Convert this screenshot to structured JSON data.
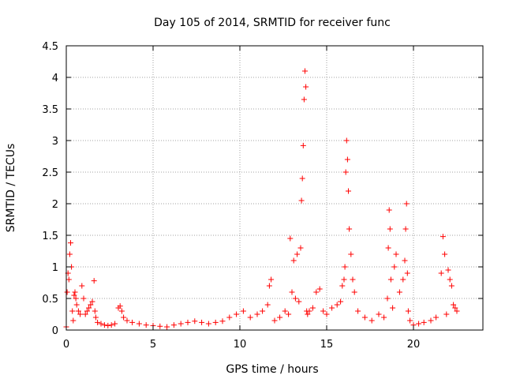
{
  "chart_data": {
    "type": "scatter",
    "title": "Day 105 of 2014, SRMTID for receiver func",
    "xlabel": "GPS time / hours",
    "ylabel": "SRMTID / TECUs",
    "xlim": [
      0,
      24
    ],
    "ylim": [
      0,
      4.5
    ],
    "x_ticks": [
      0,
      5,
      10,
      15,
      20
    ],
    "y_ticks": [
      0,
      0.5,
      1,
      1.5,
      2,
      2.5,
      3,
      3.5,
      4,
      4.5
    ],
    "x_tick_labels": [
      "0",
      "5",
      "10",
      "15",
      "20"
    ],
    "y_tick_labels": [
      "0",
      "0.5",
      "1",
      "1.5",
      "2",
      "2.5",
      "3",
      "3.5",
      "4",
      "4.5"
    ],
    "grid": true,
    "marker": "+",
    "series": [
      {
        "name": "SRMTID",
        "color": "#ff0000",
        "x": [
          0.0,
          0.05,
          0.1,
          0.15,
          0.2,
          0.25,
          0.3,
          0.35,
          0.4,
          0.45,
          0.5,
          0.55,
          0.6,
          0.7,
          0.8,
          0.9,
          1.0,
          1.1,
          1.2,
          1.3,
          1.4,
          1.5,
          1.6,
          1.65,
          1.7,
          1.8,
          2.0,
          2.2,
          2.4,
          2.6,
          2.8,
          3.0,
          3.1,
          3.2,
          3.3,
          3.5,
          3.8,
          4.2,
          4.6,
          5.0,
          5.4,
          5.8,
          6.2,
          6.6,
          7.0,
          7.4,
          7.8,
          8.2,
          8.6,
          9.0,
          9.4,
          9.8,
          10.2,
          10.6,
          11.0,
          11.3,
          11.6,
          11.7,
          11.8,
          12.0,
          12.3,
          12.6,
          12.8,
          12.9,
          13.0,
          13.1,
          13.2,
          13.3,
          13.4,
          13.5,
          13.55,
          13.6,
          13.65,
          13.7,
          13.75,
          13.8,
          13.85,
          13.9,
          14.0,
          14.2,
          14.4,
          14.6,
          14.8,
          15.0,
          15.3,
          15.6,
          15.8,
          15.9,
          16.0,
          16.05,
          16.1,
          16.15,
          16.2,
          16.25,
          16.3,
          16.4,
          16.5,
          16.6,
          16.8,
          17.2,
          17.6,
          18.0,
          18.3,
          18.5,
          18.55,
          18.6,
          18.65,
          18.7,
          18.8,
          18.9,
          19.0,
          19.2,
          19.4,
          19.5,
          19.55,
          19.6,
          19.65,
          19.7,
          19.8,
          20.0,
          20.3,
          20.6,
          21.0,
          21.3,
          21.6,
          21.7,
          21.8,
          21.9,
          22.0,
          22.1,
          22.2,
          22.3,
          22.4,
          22.5
        ],
        "y": [
          0.05,
          0.6,
          0.9,
          0.8,
          1.2,
          1.38,
          1.0,
          0.3,
          0.15,
          0.55,
          0.6,
          0.5,
          0.4,
          0.3,
          0.25,
          0.7,
          0.5,
          0.25,
          0.3,
          0.35,
          0.4,
          0.45,
          0.78,
          0.3,
          0.2,
          0.12,
          0.1,
          0.08,
          0.07,
          0.08,
          0.1,
          0.35,
          0.38,
          0.3,
          0.2,
          0.15,
          0.12,
          0.1,
          0.08,
          0.07,
          0.06,
          0.05,
          0.08,
          0.1,
          0.12,
          0.14,
          0.12,
          0.1,
          0.12,
          0.14,
          0.2,
          0.25,
          0.3,
          0.2,
          0.25,
          0.3,
          0.4,
          0.7,
          0.8,
          0.15,
          0.2,
          0.3,
          0.25,
          1.45,
          0.6,
          1.1,
          0.5,
          1.2,
          0.45,
          1.3,
          2.05,
          2.4,
          2.92,
          3.65,
          4.1,
          3.85,
          0.3,
          0.25,
          0.3,
          0.35,
          0.6,
          0.65,
          0.3,
          0.25,
          0.35,
          0.4,
          0.45,
          0.7,
          0.8,
          1.0,
          2.5,
          3.0,
          2.7,
          2.2,
          1.6,
          1.2,
          0.8,
          0.6,
          0.3,
          0.2,
          0.15,
          0.25,
          0.2,
          0.5,
          1.3,
          1.9,
          1.6,
          0.8,
          0.35,
          1.0,
          1.2,
          0.6,
          0.8,
          1.1,
          1.6,
          2.0,
          0.9,
          0.3,
          0.15,
          0.08,
          0.1,
          0.12,
          0.15,
          0.2,
          0.9,
          1.48,
          1.2,
          0.25,
          0.95,
          0.8,
          0.7,
          0.4,
          0.35,
          0.3
        ]
      }
    ]
  }
}
